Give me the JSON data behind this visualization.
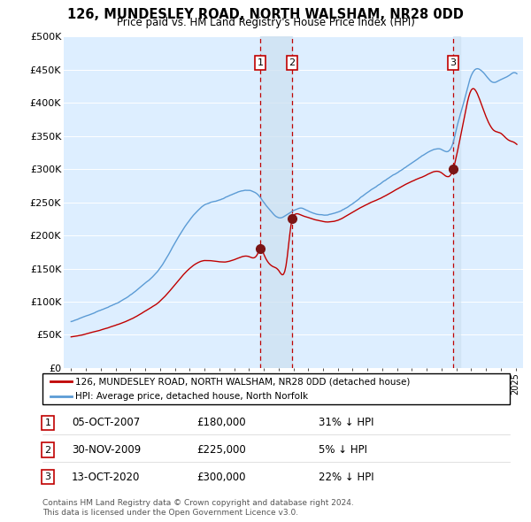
{
  "title": "126, MUNDESLEY ROAD, NORTH WALSHAM, NR28 0DD",
  "subtitle": "Price paid vs. HM Land Registry's House Price Index (HPI)",
  "legend_line1": "126, MUNDESLEY ROAD, NORTH WALSHAM, NR28 0DD (detached house)",
  "legend_line2": "HPI: Average price, detached house, North Norfolk",
  "footer1": "Contains HM Land Registry data © Crown copyright and database right 2024.",
  "footer2": "This data is licensed under the Open Government Licence v3.0.",
  "sales": [
    {
      "num": 1,
      "date_x": 2007.75,
      "price": 180000,
      "label": "05-OCT-2007",
      "pct": "31% ↓ HPI"
    },
    {
      "num": 2,
      "date_x": 2009.91,
      "price": 225000,
      "label": "30-NOV-2009",
      "pct": "5% ↓ HPI"
    },
    {
      "num": 3,
      "date_x": 2020.78,
      "price": 300000,
      "label": "13-OCT-2020",
      "pct": "22% ↓ HPI"
    }
  ],
  "hpi_color": "#5b9bd5",
  "price_color": "#c00000",
  "sale_dot_color": "#7b1414",
  "vline_color": "#c00000",
  "shade_color": "#cce0f0",
  "background_chart": "#ddeeff",
  "grid_color": "#ffffff",
  "ylim": [
    0,
    500000
  ],
  "yticks": [
    0,
    50000,
    100000,
    150000,
    200000,
    250000,
    300000,
    350000,
    400000,
    450000,
    500000
  ],
  "ytick_labels": [
    "£0",
    "£50K",
    "£100K",
    "£150K",
    "£200K",
    "£250K",
    "£300K",
    "£350K",
    "£400K",
    "£450K",
    "£500K"
  ],
  "xlim_start": 1994.5,
  "xlim_end": 2025.5
}
